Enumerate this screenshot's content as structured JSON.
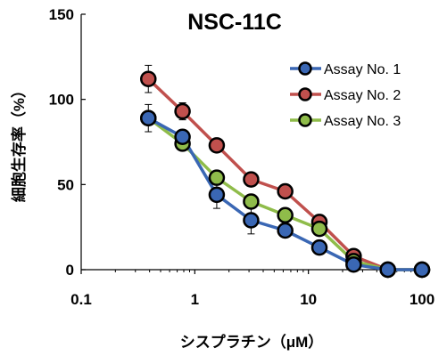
{
  "chart_data": {
    "type": "line",
    "title": "NSC-11C",
    "xlabel": "シスプラチン（μM）",
    "ylabel": "細胞生存率（%）",
    "xscale": "log",
    "xlim": [
      0.1,
      100
    ],
    "ylim": [
      0,
      150
    ],
    "xticks": [
      "0.1",
      "1",
      "10",
      "100"
    ],
    "yticks": [
      "0",
      "50",
      "100",
      "150"
    ],
    "grid": false,
    "legend_position": "top-right",
    "x": [
      0.39,
      0.78,
      1.56,
      3.13,
      6.25,
      12.5,
      25,
      50,
      100
    ],
    "series": [
      {
        "name": "Assay No. 1",
        "color": "#3a67b4",
        "values": [
          89,
          78,
          44,
          29,
          23,
          13,
          3,
          0,
          0
        ],
        "errors": [
          0,
          2,
          8,
          8,
          3,
          2,
          1,
          0,
          0
        ]
      },
      {
        "name": "Assay No. 2",
        "color": "#c0504d",
        "values": [
          112,
          93,
          73,
          53,
          46,
          28,
          8,
          0,
          0
        ],
        "errors": [
          8,
          5,
          2,
          2,
          2,
          2,
          2,
          0,
          0
        ]
      },
      {
        "name": "Assay No. 3",
        "color": "#8fbc4a",
        "values": [
          89,
          74,
          54,
          40,
          32,
          24,
          5,
          0,
          0
        ],
        "errors": [
          8,
          2,
          2,
          4,
          4,
          2,
          1,
          0,
          0
        ]
      }
    ]
  }
}
